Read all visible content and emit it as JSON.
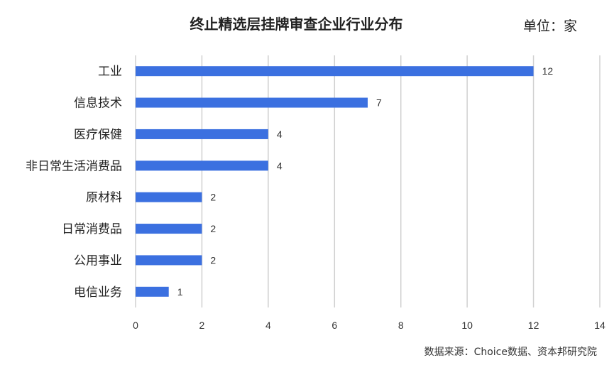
{
  "chart_data": {
    "type": "bar",
    "orientation": "horizontal",
    "title": "终止精选层挂牌审查企业行业分布",
    "unit": "单位：家",
    "source": "数据来源：Choice数据、资本邦研究院",
    "categories": [
      "工业",
      "信息技术",
      "医疗保健",
      "非日常生活消费品",
      "原材料",
      "日常消费品",
      "公用事业",
      "电信业务"
    ],
    "values": [
      12,
      7,
      4,
      4,
      2,
      2,
      2,
      1
    ],
    "xlim": [
      0,
      14
    ],
    "xticks": [
      0,
      2,
      4,
      6,
      8,
      10,
      12,
      14
    ],
    "grid": true,
    "legend": "none",
    "bar_color": "#3b70e0",
    "grid_color": "#d0d0d0"
  }
}
